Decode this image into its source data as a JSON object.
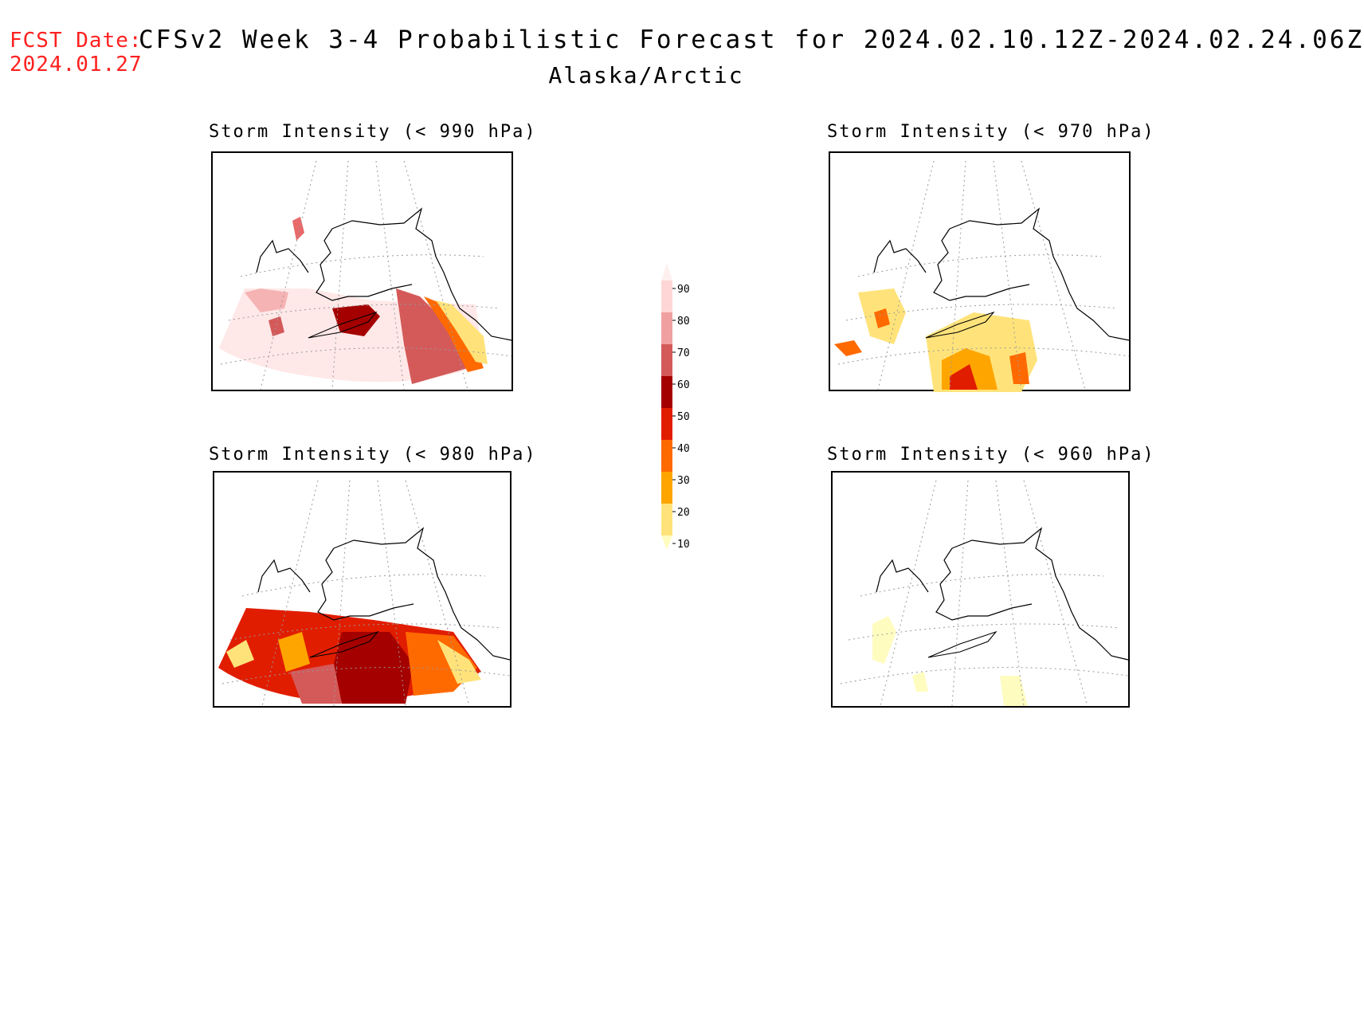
{
  "header": {
    "fcst_label": "FCST Date:",
    "fcst_date": "2024.01.27",
    "title": "CFSv2 Week 3-4 Probabilistic Forecast for 2024.02.10.12Z-2024.02.24.06Z",
    "region": "Alaska/Arctic"
  },
  "panels": [
    {
      "id": "p990",
      "title": "Storm Intensity (< 990 hPa)",
      "threshold_hpa": 990
    },
    {
      "id": "p970",
      "title": "Storm Intensity (< 970 hPa)",
      "threshold_hpa": 970
    },
    {
      "id": "p980",
      "title": "Storm Intensity (< 980 hPa)",
      "threshold_hpa": 980
    },
    {
      "id": "p960",
      "title": "Storm Intensity (< 960 hPa)",
      "threshold_hpa": 960
    }
  ],
  "colorbar": {
    "levels": [
      "10",
      "20",
      "30",
      "40",
      "50",
      "60",
      "70",
      "80",
      "90"
    ],
    "colors": [
      "#fffcc0",
      "#ffe37a",
      "#ffa500",
      "#ff6a00",
      "#e11d00",
      "#a50000",
      "#d45a5a",
      "#f0a0a0",
      "#ffd6d6",
      "#fff0f0"
    ]
  }
}
